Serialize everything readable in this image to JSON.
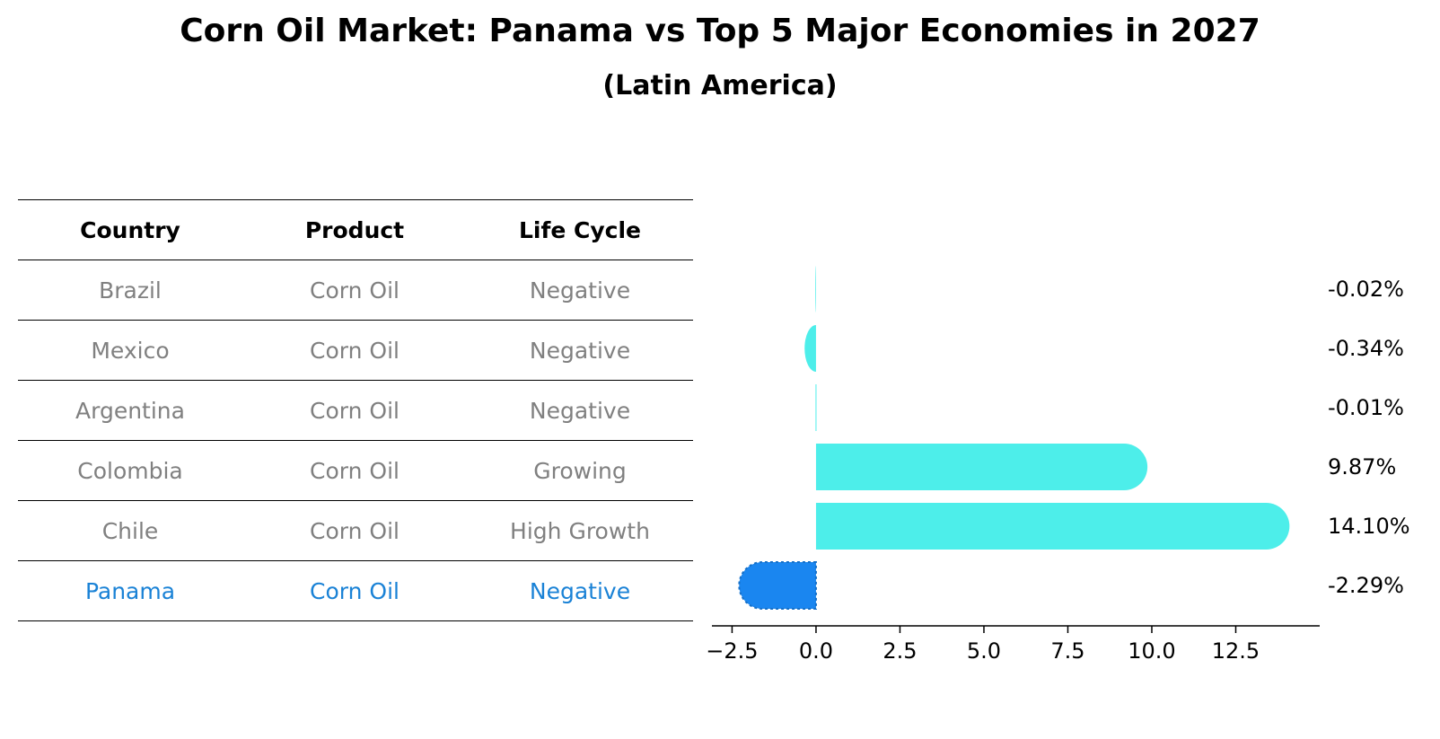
{
  "title": "Corn Oil Market: Panama vs Top 5 Major Economies in 2027",
  "subtitle": "(Latin America)",
  "table": {
    "headers": [
      "Country",
      "Product",
      "Life Cycle"
    ],
    "rows": [
      [
        "Brazil",
        "Corn Oil",
        "Negative"
      ],
      [
        "Mexico",
        "Corn Oil",
        "Negative"
      ],
      [
        "Argentina",
        "Corn Oil",
        "Negative"
      ],
      [
        "Colombia",
        "Corn Oil",
        "Growing"
      ],
      [
        "Chile",
        "Corn Oil",
        "High Growth"
      ],
      [
        "Panama",
        "Corn Oil",
        "Negative"
      ]
    ],
    "highlight_row": 5
  },
  "colors": {
    "bar": "#4deeea",
    "highlight_bar": "#1a86f0",
    "highlight_text": "#1a82d6",
    "muted_text": "#808080"
  },
  "chart_data": {
    "type": "bar",
    "orientation": "horizontal",
    "categories": [
      "Brazil",
      "Mexico",
      "Argentina",
      "Colombia",
      "Chile",
      "Panama"
    ],
    "values": [
      -0.02,
      -0.34,
      -0.01,
      9.87,
      14.1,
      -2.29
    ],
    "value_labels": [
      "-0.02%",
      "-0.34%",
      "-0.01%",
      "9.87%",
      "14.10%",
      "-2.29%"
    ],
    "highlight": "Panama",
    "xlim": [
      -3.1,
      15.0
    ],
    "xticks": [
      -2.5,
      0.0,
      2.5,
      5.0,
      7.5,
      10.0,
      12.5
    ],
    "xtick_labels": [
      "−2.5",
      "0.0",
      "2.5",
      "5.0",
      "7.5",
      "10.0",
      "12.5"
    ],
    "xlabel": "",
    "ylabel": "",
    "grid": false
  }
}
